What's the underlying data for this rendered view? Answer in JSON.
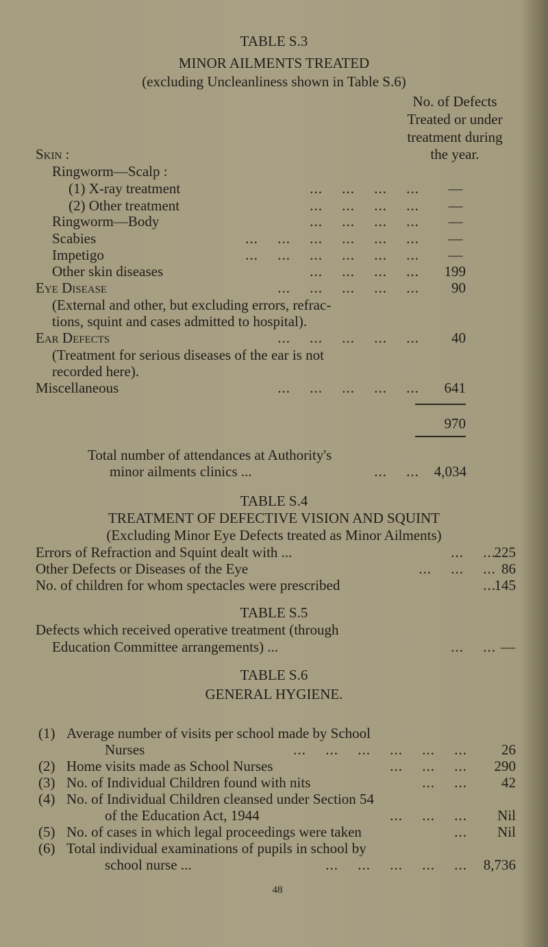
{
  "page_number": "48",
  "table_s3": {
    "title": "TABLE S.3",
    "heading": "MINOR AILMENTS TREATED",
    "subheading": "(excluding Uncleanliness shown in Table S.6)",
    "column_header": [
      "No. of Defects",
      "Treated or under",
      "treatment during",
      "the year."
    ],
    "skin_label": "Skin :",
    "ringworm_scalp": "Ringworm—Scalp :",
    "rows": [
      {
        "label": "(1) X-ray treatment",
        "leader": "... ... ... ...",
        "value": "—"
      },
      {
        "label": "(2) Other treatment",
        "leader": "... ... ... ...",
        "value": "—"
      },
      {
        "label": "Ringworm—Body",
        "leader": "... ... ... ...",
        "value": "—"
      },
      {
        "label": "Scabies",
        "leader": "... ... ... ... ... ...",
        "value": "—"
      },
      {
        "label": "Impetigo",
        "leader": "... ... ... ... ... ...",
        "value": "—"
      },
      {
        "label": "Other skin diseases",
        "leader": "... ... ... ...",
        "value": "199"
      },
      {
        "label": "Eye Disease",
        "leader": "... ... ... ... ...",
        "value": "90"
      },
      {
        "label": "Ear Defects",
        "leader": "... ... ... ... ...",
        "value": "40"
      },
      {
        "label": "Miscellaneous",
        "leader": "... ... ... ... ...",
        "value": "641"
      }
    ],
    "eye_note": [
      "(External and other, but excluding errors, refrac-",
      "tions, squint and cases admitted to hospital)."
    ],
    "ear_note": [
      "(Treatment for serious diseases of the ear is not",
      "recorded here)."
    ],
    "total": "970",
    "attendances_label": [
      "Total number of attendances at Authority's",
      "minor ailments clinics ..."
    ],
    "attendances_leader": "... ...",
    "attendances_value": "4,034"
  },
  "table_s4": {
    "title": "TABLE S.4",
    "heading": "TREATMENT OF DEFECTIVE VISION AND SQUINT",
    "subheading": "(Excluding Minor Eye Defects treated as Minor Ailments)",
    "rows": [
      {
        "label": "Errors of Refraction and Squint dealt with ...",
        "leader": "... ...",
        "value": "225"
      },
      {
        "label": "Other Defects or Diseases of the Eye",
        "leader": "... ... ...",
        "value": "86"
      },
      {
        "label": "No. of children for whom spectacles were prescribed",
        "leader": "...",
        "value": "145"
      }
    ]
  },
  "table_s5": {
    "title": "TABLE S.5",
    "text": [
      "Defects which received operative treatment (through",
      "Education Committee arrangements) ..."
    ],
    "leader": "... ...",
    "value": "—"
  },
  "table_s6": {
    "title": "TABLE S.6",
    "heading": "GENERAL HYGIENE.",
    "items": [
      {
        "num": "(1)",
        "lines": [
          "Average number of visits per school made by School",
          "Nurses"
        ],
        "leader": "... ... ... ... ... ...",
        "value": "26"
      },
      {
        "num": "(2)",
        "lines": [
          "Home visits made as School Nurses"
        ],
        "leader": "... ... ...",
        "value": "290"
      },
      {
        "num": "(3)",
        "lines": [
          "No. of Individual Children found with nits"
        ],
        "leader": "... ...",
        "value": "42"
      },
      {
        "num": "(4)",
        "lines": [
          "No. of Individual Children cleansed under Section 54",
          "of the Education Act, 1944"
        ],
        "leader": "... ... ...",
        "value": "Nil"
      },
      {
        "num": "(5)",
        "lines": [
          "No. of cases in which legal proceedings were taken"
        ],
        "leader": "...",
        "value": "Nil"
      },
      {
        "num": "(6)",
        "lines": [
          "Total individual examinations of pupils in school by",
          "school nurse ..."
        ],
        "leader": "... ... ... ... ...",
        "value": "8,736"
      }
    ]
  }
}
